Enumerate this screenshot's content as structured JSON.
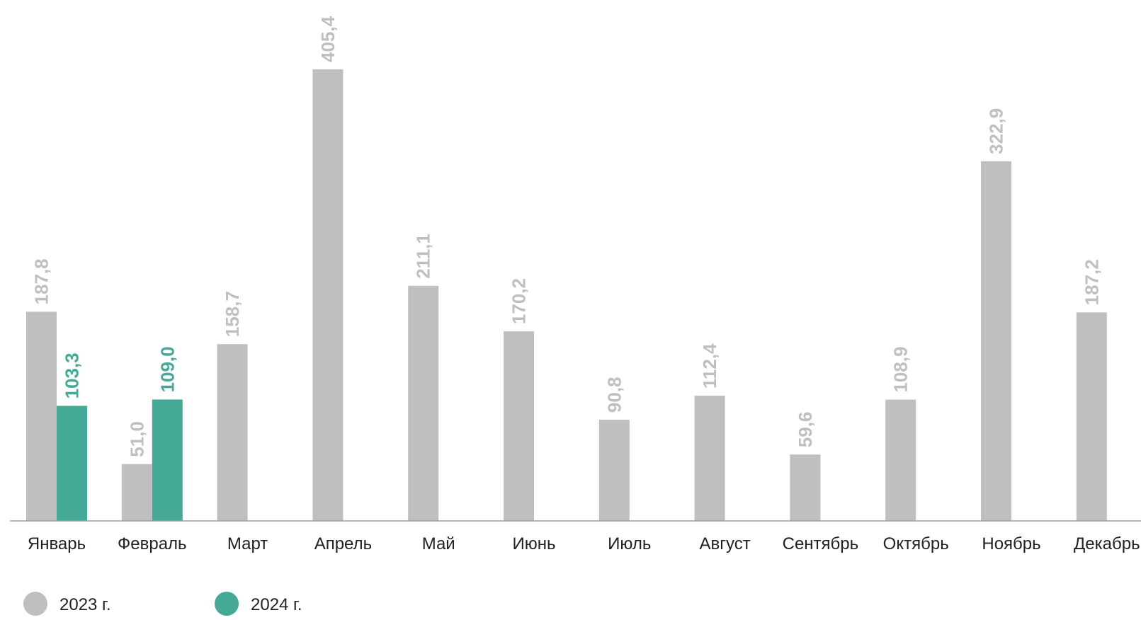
{
  "chart_data": {
    "type": "bar",
    "categories": [
      "Январь",
      "Февраль",
      "Март",
      "Апрель",
      "Май",
      "Июнь",
      "Июль",
      "Август",
      "Сентябрь",
      "Октябрь",
      "Ноябрь",
      "Декабрь"
    ],
    "series": [
      {
        "name": "2023 г.",
        "color": "#bfbfbf",
        "values": [
          187.8,
          51.0,
          158.7,
          405.4,
          211.1,
          170.2,
          90.8,
          112.4,
          59.6,
          108.9,
          322.9,
          187.2
        ],
        "labels": [
          "187,8",
          "51,0",
          "158,7",
          "405,4",
          "211,1",
          "170,2",
          "90,8",
          "112,4",
          "59,6",
          "108,9",
          "322,9",
          "187,2"
        ]
      },
      {
        "name": "2024 г.",
        "color": "#45a997",
        "values": [
          103.3,
          109.0,
          null,
          null,
          null,
          null,
          null,
          null,
          null,
          null,
          null,
          null
        ],
        "labels": [
          "103,3",
          "109,0",
          null,
          null,
          null,
          null,
          null,
          null,
          null,
          null,
          null,
          null
        ]
      }
    ],
    "ylim": [
      0,
      405.4
    ],
    "grid": false,
    "legend": "bottom-left",
    "data_labels": "rotated-vertical",
    "title": "",
    "xlabel": "",
    "ylabel": ""
  }
}
